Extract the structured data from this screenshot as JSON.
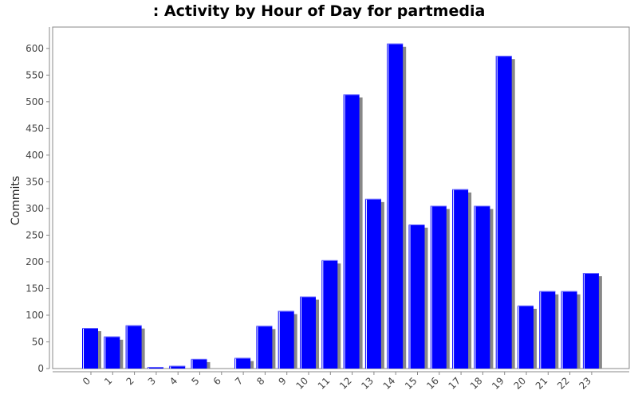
{
  "chart_data": {
    "type": "bar",
    "title": ": Activity by Hour of Day for partmedia",
    "xlabel": "",
    "ylabel": "Commits",
    "categories": [
      "0",
      "1",
      "2",
      "3",
      "4",
      "5",
      "6",
      "7",
      "8",
      "9",
      "10",
      "11",
      "12",
      "13",
      "14",
      "15",
      "16",
      "17",
      "18",
      "19",
      "20",
      "21",
      "22",
      "23"
    ],
    "values": [
      76,
      60,
      81,
      3,
      5,
      18,
      0,
      20,
      80,
      108,
      135,
      203,
      514,
      318,
      609,
      270,
      305,
      336,
      305,
      586,
      118,
      145,
      145,
      179
    ],
    "ylim": [
      0,
      640
    ],
    "yticks": [
      0,
      50,
      100,
      150,
      200,
      250,
      300,
      350,
      400,
      450,
      500,
      550,
      600
    ],
    "grid": false,
    "colors": {
      "bar": "#0000ff",
      "shadow": "#888888",
      "highlight": "#ffffff",
      "frame": "#888888"
    }
  }
}
